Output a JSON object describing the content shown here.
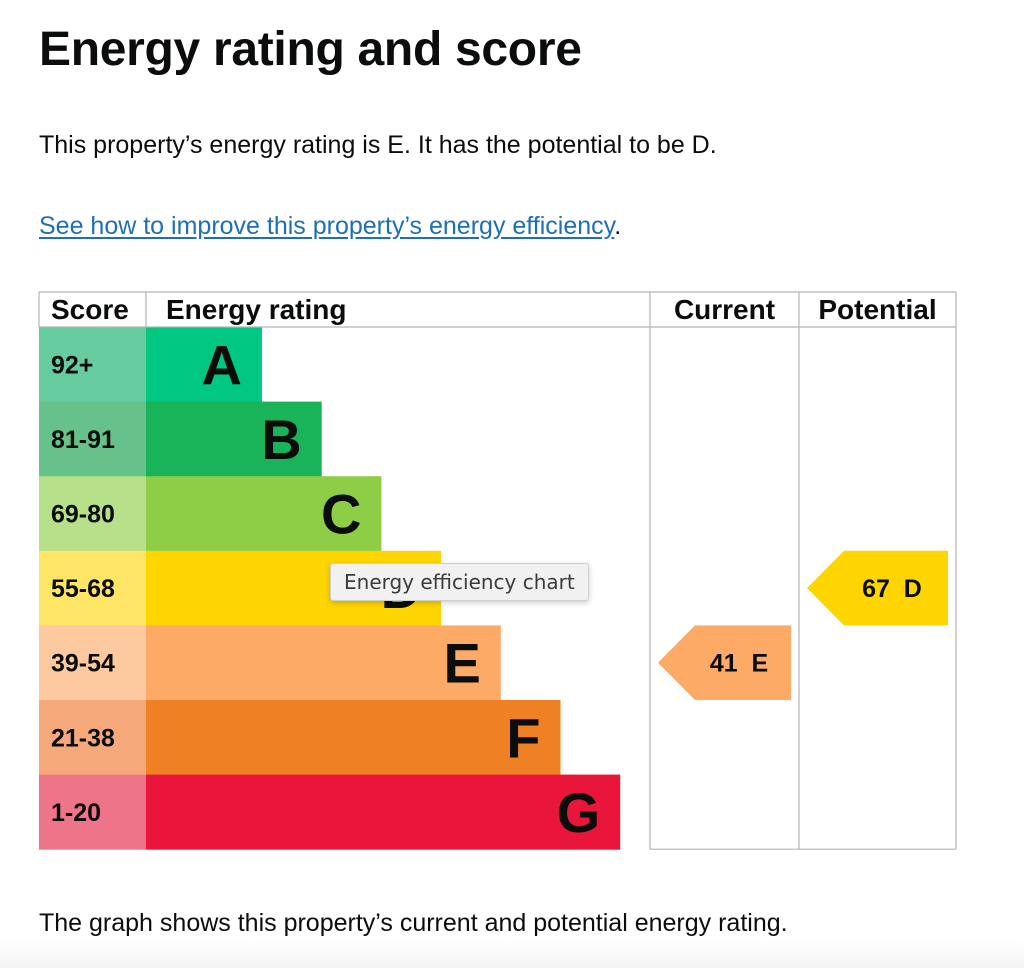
{
  "page": {
    "title": "Energy rating and score",
    "summary": "This property’s energy rating is E. It has the potential to be D.",
    "improve_link": "See how to improve this property’s energy efficiency",
    "improve_link_suffix": ".",
    "footer": "The graph shows this property’s current and potential energy rating.",
    "tooltip": "Energy efficiency chart"
  },
  "chart_data": {
    "type": "bar",
    "columns": {
      "score": "Score",
      "rating": "Energy rating",
      "current": "Current",
      "potential": "Potential"
    },
    "bands": [
      {
        "band": "A",
        "range": "92+",
        "color": "#00c781",
        "range_color": "#66cc9f"
      },
      {
        "band": "B",
        "range": "81-91",
        "color": "#19b459",
        "range_color": "#66c18a"
      },
      {
        "band": "C",
        "range": "69-80",
        "color": "#8dce46",
        "range_color": "#b6e089"
      },
      {
        "band": "D",
        "range": "55-68",
        "color": "#ffd500",
        "range_color": "#ffe566"
      },
      {
        "band": "E",
        "range": "39-54",
        "color": "#fcaa65",
        "range_color": "#fdcaa0"
      },
      {
        "band": "F",
        "range": "21-38",
        "color": "#ef8023",
        "range_color": "#f5a97b"
      },
      {
        "band": "G",
        "range": "1-20",
        "color": "#e9153b",
        "range_color": "#ee7589"
      }
    ],
    "current": {
      "score": 41,
      "band": "E",
      "label": "41  E",
      "color": "#fcaa65"
    },
    "potential": {
      "score": 67,
      "band": "D",
      "label": "67  D",
      "color": "#ffd500"
    }
  },
  "colors": {
    "link": "#1d70b8",
    "text": "#0b0c0c",
    "grid": "#b1b4b6"
  }
}
